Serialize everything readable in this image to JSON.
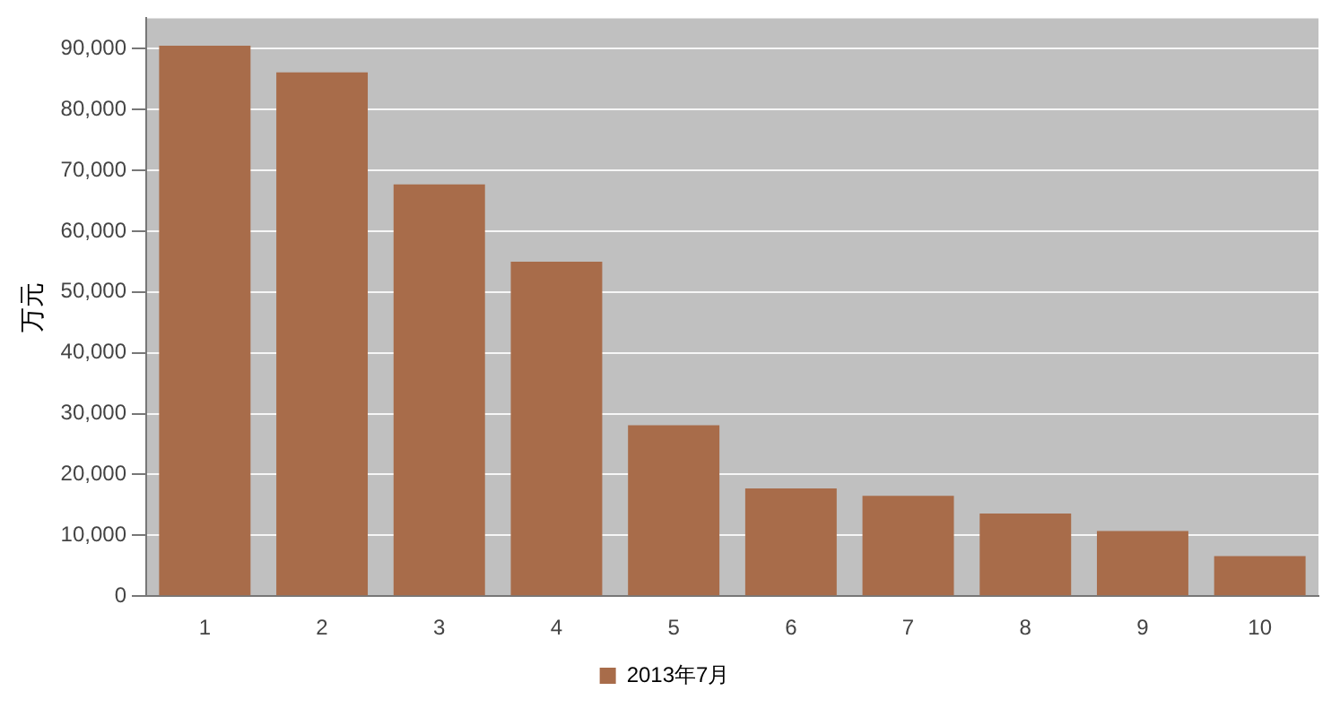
{
  "chart_data": {
    "type": "bar",
    "ylabel": "万元",
    "categories": [
      "1",
      "2",
      "3",
      "4",
      "5",
      "6",
      "7",
      "8",
      "9",
      "10"
    ],
    "series": [
      {
        "name": "2013年7月",
        "color": "#a86c4a",
        "values": [
          90500,
          86100,
          67700,
          55000,
          28100,
          17700,
          16500,
          13600,
          10700,
          6600
        ]
      }
    ],
    "ylim": [
      0,
      95000
    ],
    "yticks": [
      0,
      {
        "value": 10000,
        "label": "10,000"
      },
      {
        "value": 20000,
        "label": "20,000"
      },
      {
        "value": 30000,
        "label": "30,000"
      },
      {
        "value": 40000,
        "label": "40,000"
      },
      {
        "value": 50000,
        "label": "50,000"
      },
      {
        "value": 60000,
        "label": "60,000"
      },
      {
        "value": 70000,
        "label": "70,000"
      },
      {
        "value": 80000,
        "label": "80,000"
      },
      {
        "value": 90000,
        "label": "90,000"
      }
    ],
    "grid": "y",
    "legend": "bottom"
  }
}
